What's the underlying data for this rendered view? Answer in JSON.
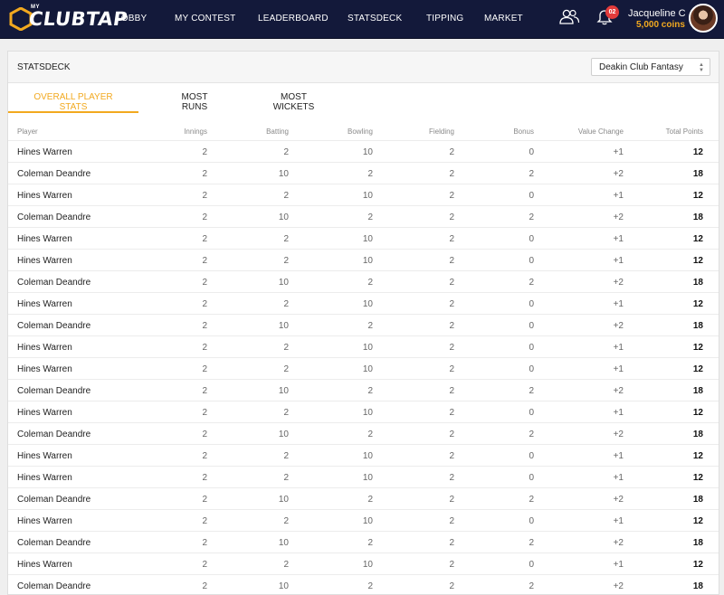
{
  "nav": {
    "logo_prefix": "MY",
    "logo_text": "CLUBTAP",
    "items": [
      "LOBBY",
      "MY CONTEST",
      "LEADERBOARD",
      "STATSDECK",
      "TIPPING",
      "MARKET"
    ],
    "notification_count": "02",
    "user_name": "Jacqueline C",
    "user_coins": "5,000 coins"
  },
  "page": {
    "title": "STATSDECK",
    "select_value": "Deakin Club Fantasy"
  },
  "tabs": [
    {
      "line1": "OVERALL PLAYER",
      "line2": "STATS",
      "active": true
    },
    {
      "line1": "MOST",
      "line2": "RUNS",
      "active": false
    },
    {
      "line1": "MOST WICKETS",
      "line2": "",
      "active": false
    }
  ],
  "table": {
    "headers": [
      "Player",
      "Innings",
      "Batting",
      "Bowling",
      "Fielding",
      "Bonus",
      "Value Change",
      "Total Points"
    ],
    "rows": [
      [
        "Hines Warren",
        "2",
        "2",
        "10",
        "2",
        "0",
        "+1",
        "12"
      ],
      [
        "Coleman Deandre",
        "2",
        "10",
        "2",
        "2",
        "2",
        "+2",
        "18"
      ],
      [
        "Hines Warren",
        "2",
        "2",
        "10",
        "2",
        "0",
        "+1",
        "12"
      ],
      [
        "Coleman Deandre",
        "2",
        "10",
        "2",
        "2",
        "2",
        "+2",
        "18"
      ],
      [
        "Hines Warren",
        "2",
        "2",
        "10",
        "2",
        "0",
        "+1",
        "12"
      ],
      [
        "Hines Warren",
        "2",
        "2",
        "10",
        "2",
        "0",
        "+1",
        "12"
      ],
      [
        "Coleman Deandre",
        "2",
        "10",
        "2",
        "2",
        "2",
        "+2",
        "18"
      ],
      [
        "Hines Warren",
        "2",
        "2",
        "10",
        "2",
        "0",
        "+1",
        "12"
      ],
      [
        "Coleman Deandre",
        "2",
        "10",
        "2",
        "2",
        "0",
        "+2",
        "18"
      ],
      [
        "Hines Warren",
        "2",
        "2",
        "10",
        "2",
        "0",
        "+1",
        "12"
      ],
      [
        "Hines Warren",
        "2",
        "2",
        "10",
        "2",
        "0",
        "+1",
        "12"
      ],
      [
        "Coleman Deandre",
        "2",
        "10",
        "2",
        "2",
        "2",
        "+2",
        "18"
      ],
      [
        "Hines Warren",
        "2",
        "2",
        "10",
        "2",
        "0",
        "+1",
        "12"
      ],
      [
        "Coleman Deandre",
        "2",
        "10",
        "2",
        "2",
        "2",
        "+2",
        "18"
      ],
      [
        "Hines Warren",
        "2",
        "2",
        "10",
        "2",
        "0",
        "+1",
        "12"
      ],
      [
        "Hines Warren",
        "2",
        "2",
        "10",
        "2",
        "0",
        "+1",
        "12"
      ],
      [
        "Coleman Deandre",
        "2",
        "10",
        "2",
        "2",
        "2",
        "+2",
        "18"
      ],
      [
        "Hines Warren",
        "2",
        "2",
        "10",
        "2",
        "0",
        "+1",
        "12"
      ],
      [
        "Coleman Deandre",
        "2",
        "10",
        "2",
        "2",
        "2",
        "+2",
        "18"
      ],
      [
        "Hines Warren",
        "2",
        "2",
        "10",
        "2",
        "0",
        "+1",
        "12"
      ],
      [
        "Coleman Deandre",
        "2",
        "10",
        "2",
        "2",
        "2",
        "+2",
        "18"
      ]
    ]
  },
  "colors": {
    "nav_bg": "#13193a",
    "accent": "#f2a91f",
    "badge": "#e23b3b"
  },
  "icons": [
    "hexagon-logo-icon",
    "users-icon",
    "bell-icon",
    "chevron-updown-icon"
  ]
}
